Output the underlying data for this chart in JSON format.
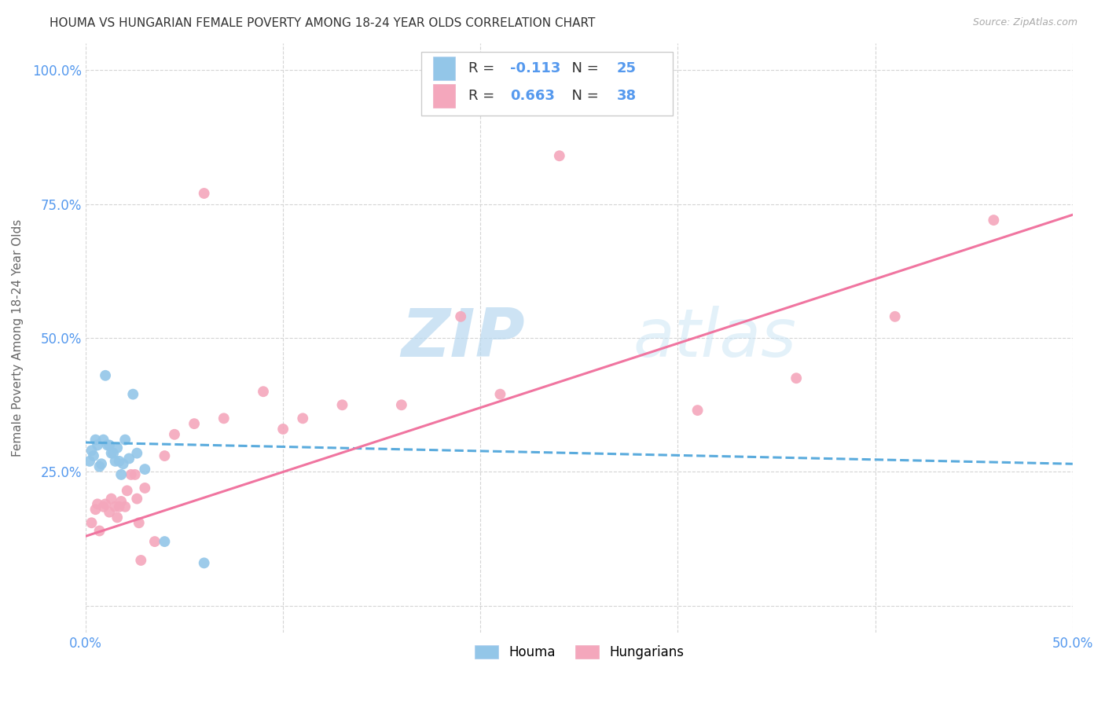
{
  "title": "HOUMA VS HUNGARIAN FEMALE POVERTY AMONG 18-24 YEAR OLDS CORRELATION CHART",
  "source": "Source: ZipAtlas.com",
  "ylabel": "Female Poverty Among 18-24 Year Olds",
  "xlim": [
    0.0,
    0.5
  ],
  "ylim": [
    -0.05,
    1.05
  ],
  "x_ticks": [
    0.0,
    0.1,
    0.2,
    0.3,
    0.4,
    0.5
  ],
  "x_tick_labels": [
    "0.0%",
    "",
    "",
    "",
    "",
    "50.0%"
  ],
  "y_ticks": [
    0.0,
    0.25,
    0.5,
    0.75,
    1.0
  ],
  "y_tick_labels": [
    "",
    "25.0%",
    "50.0%",
    "75.0%",
    "100.0%"
  ],
  "houma_R": -0.113,
  "houma_N": 25,
  "hungarian_R": 0.663,
  "hungarian_N": 38,
  "houma_color": "#93c6e8",
  "hungarian_color": "#f4a7bc",
  "houma_line_color": "#5aabdd",
  "hungarian_line_color": "#f075a0",
  "houma_scatter_x": [
    0.002,
    0.003,
    0.004,
    0.005,
    0.006,
    0.007,
    0.008,
    0.009,
    0.01,
    0.011,
    0.012,
    0.013,
    0.014,
    0.015,
    0.016,
    0.017,
    0.018,
    0.019,
    0.02,
    0.022,
    0.024,
    0.026,
    0.03,
    0.04,
    0.06
  ],
  "houma_scatter_y": [
    0.27,
    0.29,
    0.28,
    0.31,
    0.3,
    0.26,
    0.265,
    0.31,
    0.43,
    0.3,
    0.3,
    0.285,
    0.285,
    0.27,
    0.295,
    0.27,
    0.245,
    0.265,
    0.31,
    0.275,
    0.395,
    0.285,
    0.255,
    0.12,
    0.08
  ],
  "hungarian_scatter_x": [
    0.003,
    0.005,
    0.006,
    0.007,
    0.009,
    0.01,
    0.012,
    0.013,
    0.015,
    0.016,
    0.017,
    0.018,
    0.02,
    0.021,
    0.023,
    0.025,
    0.026,
    0.027,
    0.028,
    0.03,
    0.035,
    0.04,
    0.045,
    0.055,
    0.06,
    0.07,
    0.09,
    0.1,
    0.11,
    0.13,
    0.16,
    0.19,
    0.21,
    0.24,
    0.31,
    0.36,
    0.41,
    0.46
  ],
  "hungarian_scatter_y": [
    0.155,
    0.18,
    0.19,
    0.14,
    0.185,
    0.19,
    0.175,
    0.2,
    0.185,
    0.165,
    0.185,
    0.195,
    0.185,
    0.215,
    0.245,
    0.245,
    0.2,
    0.155,
    0.085,
    0.22,
    0.12,
    0.28,
    0.32,
    0.34,
    0.77,
    0.35,
    0.4,
    0.33,
    0.35,
    0.375,
    0.375,
    0.54,
    0.395,
    0.84,
    0.365,
    0.425,
    0.54,
    0.72
  ],
  "houma_trend_x": [
    0.0,
    0.5
  ],
  "houma_trend_y": [
    0.305,
    0.265
  ],
  "hungarian_trend_x": [
    0.0,
    0.5
  ],
  "hungarian_trend_y": [
    0.13,
    0.73
  ],
  "watermark_zip": "ZIP",
  "watermark_atlas": "atlas",
  "background_color": "#ffffff",
  "grid_color": "#d5d5d5",
  "label_color": "#5599ee",
  "title_color": "#333333",
  "source_color": "#aaaaaa"
}
